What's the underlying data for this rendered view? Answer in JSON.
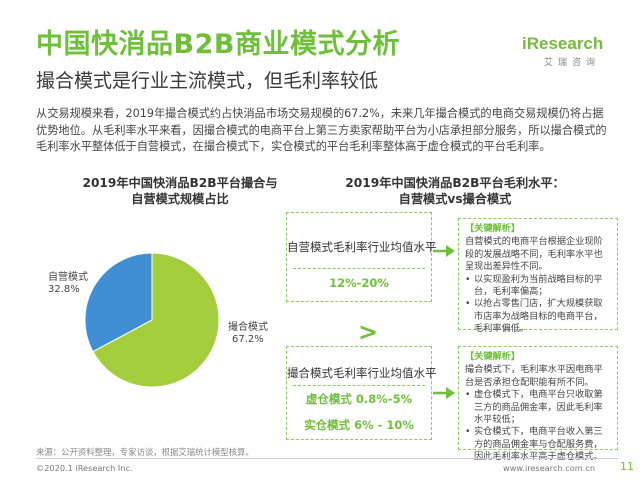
{
  "header": {
    "title": "中国快消品B2B商业模式分析",
    "subtitle": "撮合模式是行业主流模式，但毛利率较低"
  },
  "logo": {
    "word": "iResearch",
    "sub": "艾瑞咨询"
  },
  "intro": "从交易规模来看，2019年撮合模式约占快消品市场交易规模的67.2%，未来几年撮合模式的电商交易规模仍将占据优势地位。从毛利率水平来看，因撮合模式的电商平台上第三方卖家帮助平台为小店承担部分服务，所以撮合模式的毛利率水平整体低于自营模式，在撮合模式下，实仓模式的平台毛利率整体高于虚仓模式的平台毛利率。",
  "left_chart": {
    "title": "2019年中国快消品B2B平台撮合与自营模式规模占比"
  },
  "chart_data": {
    "type": "pie",
    "title": "2019年中国快消品B2B平台撮合与自营模式规模占比",
    "slices": [
      {
        "name": "撮合模式",
        "value": 67.2,
        "label": "67.2%",
        "color": "#a3cd3d"
      },
      {
        "name": "自营模式",
        "value": 32.8,
        "label": "32.8%",
        "color": "#3f8fd2"
      }
    ]
  },
  "right_panel": {
    "title": "2019年中国快消品B2B平台毛利水平：自营模式vs撮合模式",
    "self_box": {
      "label": "自营模式毛利率行业均值水平",
      "value": "12%-20%"
    },
    "greater": ">",
    "match_box": {
      "label": "撮合模式毛利率行业均值水平",
      "virtual_name": "虚仓模式",
      "virtual_value": "0.8%-5%",
      "real_name": "实仓模式",
      "real_value": "6% - 10%"
    },
    "note_self": {
      "title": "【关键解析】",
      "intro": "自营模式的电商平台根据企业现阶段的发展战略不同，毛利率水平也呈现出差异性不同。",
      "points": [
        "以实现盈利为当前战略目标的平台，毛利率偏高；",
        "以抢占零售门店，扩大规模获取市店率为战略目标的电商平台，毛利率偏低。"
      ]
    },
    "note_match": {
      "title": "【关键解析】",
      "intro": "撮合模式下，毛利率水平因电商平台是否承担仓配职能有所不同。",
      "points": [
        "虚仓模式下，电商平台只收取第三方的商品佣金率，因此毛利率水平较低；",
        "实仓模式下，电商平台收入第三方的商品佣金率与仓配服务费，因此毛利率水平高于虚仓模式。"
      ]
    }
  },
  "footer": {
    "source": "来源：公开资料整理，专家访谈，根据艾瑞统计模型核算。",
    "copyright": "©2020.1 iResearch Inc.",
    "website": "www.iresearch.com.cn",
    "page": "11"
  }
}
